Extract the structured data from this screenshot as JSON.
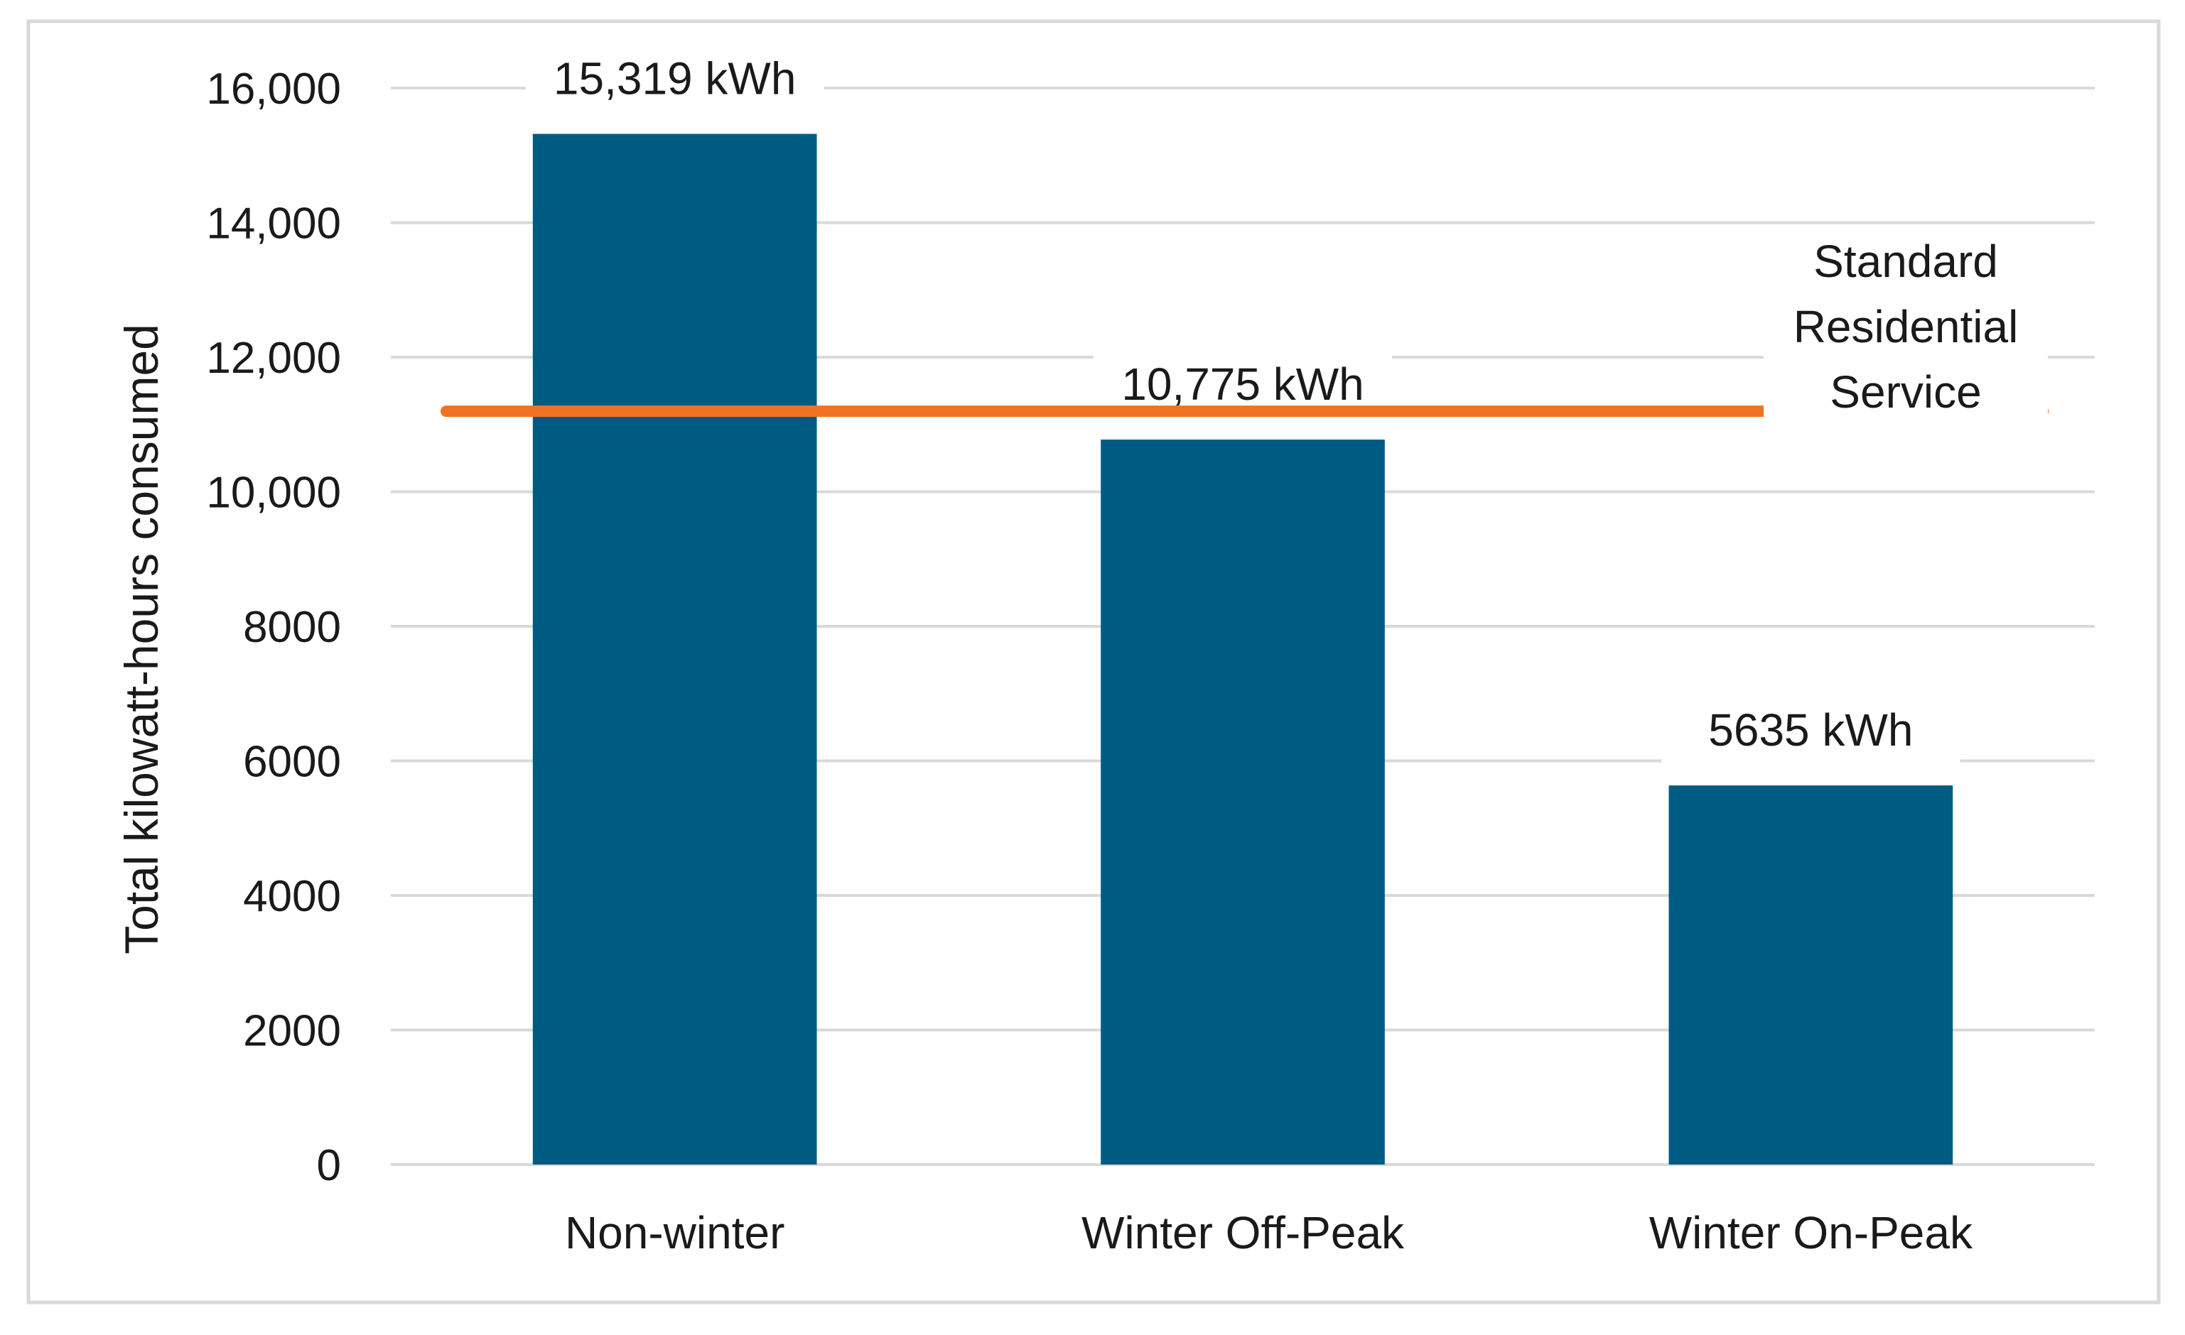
{
  "chart_data": {
    "type": "bar",
    "title": "",
    "xlabel": "",
    "ylabel": "Total kilowatt-hours consumed",
    "categories": [
      "Non-winter",
      "Winter Off-Peak",
      "Winter On-Peak"
    ],
    "values": [
      15319,
      10775,
      5635
    ],
    "data_labels": [
      "15,319 kWh",
      "10,775 kWh",
      "5635 kWh"
    ],
    "ylim": [
      0,
      16000
    ],
    "yticks": [
      {
        "value": 0,
        "label": "0"
      },
      {
        "value": 2000,
        "label": "2000"
      },
      {
        "value": 4000,
        "label": "4000"
      },
      {
        "value": 6000,
        "label": "6000"
      },
      {
        "value": 8000,
        "label": "8000"
      },
      {
        "value": 10000,
        "label": "10,000"
      },
      {
        "value": 12000,
        "label": "12,000"
      },
      {
        "value": 14000,
        "label": "14,000"
      },
      {
        "value": 16000,
        "label": "16,000"
      }
    ],
    "grid": true,
    "bar_color": "#005b82",
    "reference_line": {
      "value": 10775,
      "label_lines": [
        "Standard",
        "Residential",
        "Service"
      ],
      "color": "#f07324"
    }
  }
}
